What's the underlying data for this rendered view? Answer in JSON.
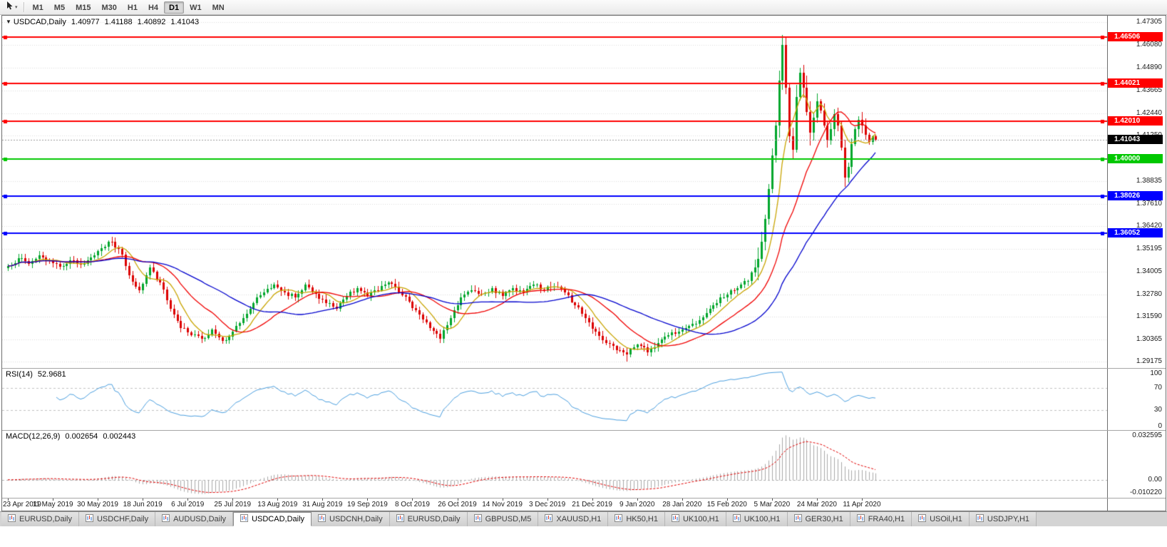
{
  "toolbar": {
    "timeframes": [
      {
        "label": "M1",
        "active": false
      },
      {
        "label": "M5",
        "active": false
      },
      {
        "label": "M15",
        "active": false
      },
      {
        "label": "M30",
        "active": false
      },
      {
        "label": "H1",
        "active": false
      },
      {
        "label": "H4",
        "active": false
      },
      {
        "label": "D1",
        "active": true
      },
      {
        "label": "W1",
        "active": false
      },
      {
        "label": "MN",
        "active": false
      }
    ]
  },
  "chart": {
    "collapse_arrow": "▼",
    "title": "USDCAD,Daily",
    "ohlc": {
      "open": "1.40977",
      "high": "1.41188",
      "low": "1.40892",
      "close": "1.41043"
    }
  },
  "price_axis": {
    "top_price": 1.4765,
    "bottom_price": 1.2885,
    "ticks": [
      "1.47305",
      "1.46080",
      "1.44890",
      "1.43665",
      "1.42440",
      "1.41250",
      "1.40025",
      "1.38835",
      "1.37610",
      "1.36420",
      "1.35195",
      "1.34005",
      "1.32780",
      "1.31590",
      "1.30365",
      "1.29175"
    ]
  },
  "hlines": [
    {
      "price": 1.46506,
      "label": "1.46506",
      "color": "#ff0000",
      "width": 2
    },
    {
      "price": 1.44021,
      "label": "1.44021",
      "color": "#ff0000",
      "width": 2
    },
    {
      "price": 1.4201,
      "label": "1.42010",
      "color": "#ff0000",
      "width": 2
    },
    {
      "price": 1.4,
      "label": "1.40000",
      "color": "#00c800",
      "width": 2
    },
    {
      "price": 1.38026,
      "label": "1.38026",
      "color": "#0000ff",
      "width": 2
    },
    {
      "price": 1.36052,
      "label": "1.36052",
      "color": "#0000ff",
      "width": 2
    }
  ],
  "current_price": {
    "value": 1.41043,
    "label": "1.41043",
    "bg": "#000000",
    "fg": "#ffffff"
  },
  "rsi": {
    "name": "RSI(14)",
    "value": "52.9681",
    "color": "#4a9ede",
    "levels": [
      70,
      30
    ],
    "axis_labels": [
      "100",
      "70",
      "30",
      "0"
    ]
  },
  "macd": {
    "name": "MACD(12,26,9)",
    "value_main": "0.002654",
    "value_signal": "0.002443",
    "hist_color": "#a9a9a9",
    "signal_color": "#e00000",
    "range": [
      -0.01022,
      0.032595
    ],
    "axis_labels": [
      "0.032595",
      "0.00",
      "-0.010220"
    ]
  },
  "dates": [
    "23 Apr 2019",
    "11 May 2019",
    "30 May 2019",
    "18 Jun 2019",
    "6 Jul 2019",
    "25 Jul 2019",
    "13 Aug 2019",
    "31 Aug 2019",
    "19 Sep 2019",
    "8 Oct 2019",
    "26 Oct 2019",
    "14 Nov 2019",
    "3 Dec 2019",
    "21 Dec 2019",
    "9 Jan 2020",
    "28 Jan 2020",
    "15 Feb 2020",
    "5 Mar 2020",
    "24 Mar 2020",
    "11 Apr 2020"
  ],
  "tabs": [
    {
      "label": "EURUSD,Daily",
      "active": false
    },
    {
      "label": "USDCHF,Daily",
      "active": false
    },
    {
      "label": "AUDUSD,Daily",
      "active": false
    },
    {
      "label": "USDCAD,Daily",
      "active": true
    },
    {
      "label": "USDCNH,Daily",
      "active": false
    },
    {
      "label": "EURUSD,Daily",
      "active": false
    },
    {
      "label": "GBPUSD,M5",
      "active": false
    },
    {
      "label": "XAUUSD,H1",
      "active": false
    },
    {
      "label": "HK50,H1",
      "active": false
    },
    {
      "label": "UK100,H1",
      "active": false
    },
    {
      "label": "UK100,H1",
      "active": false
    },
    {
      "label": "GER30,H1",
      "active": false
    },
    {
      "label": "FRA40,H1",
      "active": false
    },
    {
      "label": "USOil,H1",
      "active": false
    },
    {
      "label": "USDJPY,H1",
      "active": false
    }
  ],
  "chart_data": {
    "type": "candlestick",
    "symbol": "USDCAD",
    "timeframe": "Daily",
    "bars": 252,
    "up_color": "#00a62c",
    "down_color": "#dc0000",
    "ma": [
      {
        "period": 8,
        "color": "#c8a400"
      },
      {
        "period": 20,
        "color": "#f00000"
      },
      {
        "period": 40,
        "color": "#0000cd"
      }
    ],
    "keypoints": [
      [
        0,
        1.343
      ],
      [
        3,
        1.347
      ],
      [
        6,
        1.344
      ],
      [
        9,
        1.3485
      ],
      [
        12,
        1.3455
      ],
      [
        15,
        1.3425
      ],
      [
        18,
        1.346
      ],
      [
        21,
        1.3435
      ],
      [
        24,
        1.3475
      ],
      [
        27,
        1.3525
      ],
      [
        30,
        1.3558
      ],
      [
        33,
        1.349
      ],
      [
        35,
        1.338
      ],
      [
        38,
        1.33
      ],
      [
        41,
        1.342
      ],
      [
        44,
        1.334
      ],
      [
        47,
        1.32
      ],
      [
        50,
        1.31
      ],
      [
        53,
        1.306
      ],
      [
        56,
        1.304
      ],
      [
        59,
        1.309
      ],
      [
        62,
        1.303
      ],
      [
        65,
        1.308
      ],
      [
        68,
        1.315
      ],
      [
        71,
        1.323
      ],
      [
        74,
        1.329
      ],
      [
        77,
        1.333
      ],
      [
        80,
        1.329
      ],
      [
        83,
        1.326
      ],
      [
        86,
        1.333
      ],
      [
        89,
        1.328
      ],
      [
        92,
        1.323
      ],
      [
        95,
        1.32
      ],
      [
        98,
        1.327
      ],
      [
        101,
        1.331
      ],
      [
        104,
        1.327
      ],
      [
        107,
        1.33
      ],
      [
        110,
        1.334
      ],
      [
        113,
        1.329
      ],
      [
        116,
        1.324
      ],
      [
        119,
        1.317
      ],
      [
        122,
        1.31
      ],
      [
        125,
        1.304
      ],
      [
        128,
        1.315
      ],
      [
        131,
        1.326
      ],
      [
        134,
        1.33
      ],
      [
        137,
        1.328
      ],
      [
        140,
        1.331
      ],
      [
        143,
        1.327
      ],
      [
        146,
        1.331
      ],
      [
        149,
        1.329
      ],
      [
        152,
        1.333
      ],
      [
        155,
        1.33
      ],
      [
        158,
        1.332
      ],
      [
        161,
        1.329
      ],
      [
        164,
        1.322
      ],
      [
        167,
        1.315
      ],
      [
        170,
        1.308
      ],
      [
        173,
        1.302
      ],
      [
        176,
        1.298
      ],
      [
        179,
        1.2958
      ],
      [
        182,
        1.301
      ],
      [
        185,
        1.297
      ],
      [
        188,
        1.302
      ],
      [
        191,
        1.306
      ],
      [
        194,
        1.308
      ],
      [
        197,
        1.311
      ],
      [
        200,
        1.314
      ],
      [
        203,
        1.32
      ],
      [
        206,
        1.326
      ],
      [
        209,
        1.33
      ],
      [
        212,
        1.333
      ],
      [
        214,
        1.335
      ],
      [
        216,
        1.342
      ],
      [
        218,
        1.356
      ],
      [
        219,
        1.368
      ],
      [
        220,
        1.384
      ],
      [
        221,
        1.402
      ],
      [
        222,
        1.418
      ],
      [
        223,
        1.442
      ],
      [
        224,
        1.461
      ],
      [
        225,
        1.438
      ],
      [
        226,
        1.412
      ],
      [
        227,
        1.405
      ],
      [
        228,
        1.433
      ],
      [
        229,
        1.446
      ],
      [
        230,
        1.438
      ],
      [
        231,
        1.425
      ],
      [
        232,
        1.414
      ],
      [
        233,
        1.422
      ],
      [
        234,
        1.431
      ],
      [
        235,
        1.426
      ],
      [
        236,
        1.418
      ],
      [
        237,
        1.41
      ],
      [
        238,
        1.416
      ],
      [
        239,
        1.424
      ],
      [
        240,
        1.418
      ],
      [
        241,
        1.406
      ],
      [
        242,
        1.39
      ],
      [
        243,
        1.396
      ],
      [
        244,
        1.408
      ],
      [
        245,
        1.416
      ],
      [
        246,
        1.421
      ],
      [
        247,
        1.418
      ],
      [
        248,
        1.413
      ],
      [
        249,
        1.409
      ],
      [
        250,
        1.412
      ],
      [
        251,
        1.41043
      ]
    ],
    "last_close": 1.41043,
    "forced_highs": [
      [
        30,
        1.3568
      ],
      [
        224,
        1.4652
      ],
      [
        229,
        1.4489
      ],
      [
        239,
        1.4262
      ]
    ],
    "forced_lows": [
      [
        179,
        1.2918
      ],
      [
        227,
        1.3995
      ],
      [
        242,
        1.3852
      ]
    ]
  }
}
